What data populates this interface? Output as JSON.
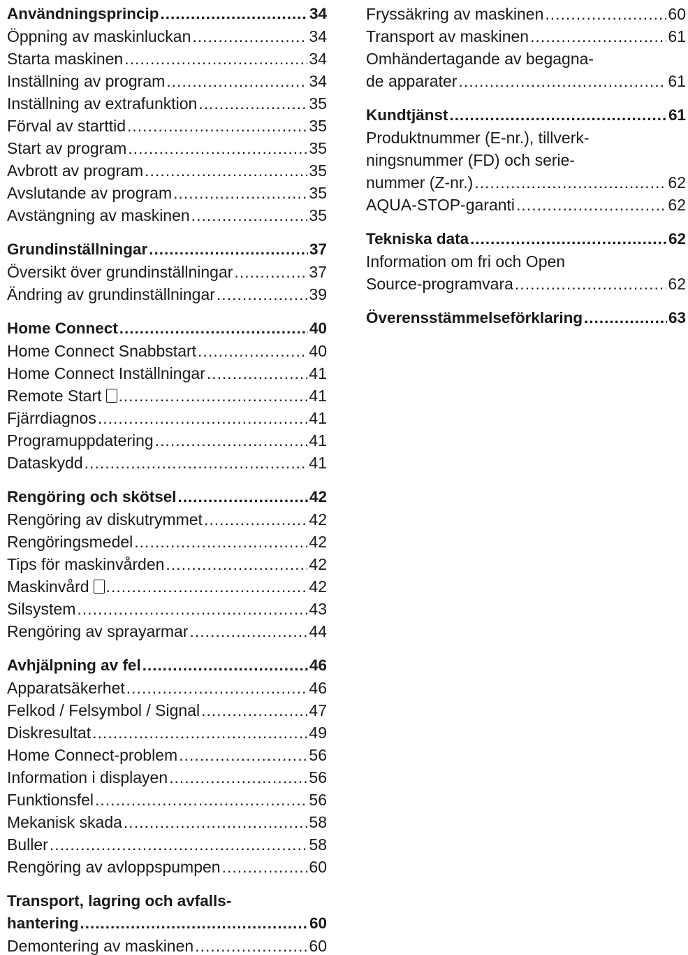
{
  "columns": [
    {
      "sections": [
        {
          "heading": {
            "lines": [
              "Användningsprincip"
            ],
            "page": "34"
          },
          "entries": [
            {
              "lines": [
                "Öppning av maskinluckan"
              ],
              "page": "34"
            },
            {
              "lines": [
                "Starta maskinen"
              ],
              "page": "34"
            },
            {
              "lines": [
                "Inställning av program"
              ],
              "page": "34"
            },
            {
              "lines": [
                "Inställning av extrafunktion"
              ],
              "page": "35"
            },
            {
              "lines": [
                "Förval av starttid"
              ],
              "page": "35"
            },
            {
              "lines": [
                "Start av program"
              ],
              "page": "35"
            },
            {
              "lines": [
                "Avbrott av program"
              ],
              "page": "35"
            },
            {
              "lines": [
                "Avslutande av program"
              ],
              "page": "35"
            },
            {
              "lines": [
                "Avstängning av maskinen"
              ],
              "page": "35"
            }
          ]
        },
        {
          "heading": {
            "lines": [
              "Grundinställningar"
            ],
            "page": "37"
          },
          "entries": [
            {
              "lines": [
                "Översikt över grundinställningar"
              ],
              "page": "37"
            },
            {
              "lines": [
                "Ändring av grundinställningar"
              ],
              "page": "39"
            }
          ]
        },
        {
          "heading": {
            "lines": [
              "Home Connect"
            ],
            "page": "40"
          },
          "entries": [
            {
              "lines": [
                "Home Connect Snabbstart"
              ],
              "page": "40"
            },
            {
              "lines": [
                "Home Connect Inställningar"
              ],
              "page": "41"
            },
            {
              "lines": [
                "Remote Start"
              ],
              "page": "41",
              "icon": true
            },
            {
              "lines": [
                "Fjärrdiagnos"
              ],
              "page": "41"
            },
            {
              "lines": [
                "Programuppdatering"
              ],
              "page": "41"
            },
            {
              "lines": [
                "Dataskydd"
              ],
              "page": "41"
            }
          ]
        },
        {
          "heading": {
            "lines": [
              "Rengöring och skötsel"
            ],
            "page": "42"
          },
          "entries": [
            {
              "lines": [
                "Rengöring av diskutrymmet"
              ],
              "page": "42"
            },
            {
              "lines": [
                "Rengöringsmedel"
              ],
              "page": "42"
            },
            {
              "lines": [
                "Tips för maskinvården"
              ],
              "page": "42"
            },
            {
              "lines": [
                "Maskinvård"
              ],
              "page": "42",
              "icon": true
            },
            {
              "lines": [
                "Silsystem"
              ],
              "page": "43"
            },
            {
              "lines": [
                "Rengöring av sprayarmar"
              ],
              "page": "44"
            }
          ]
        },
        {
          "heading": {
            "lines": [
              "Avhjälpning av fel"
            ],
            "page": "46"
          },
          "entries": [
            {
              "lines": [
                "Apparatsäkerhet"
              ],
              "page": "46"
            },
            {
              "lines": [
                "Felkod / Felsymbol / Signal"
              ],
              "page": "47"
            },
            {
              "lines": [
                "Diskresultat"
              ],
              "page": "49"
            },
            {
              "lines": [
                "Home Connect-problem"
              ],
              "page": "56"
            },
            {
              "lines": [
                "Information i displayen"
              ],
              "page": "56"
            },
            {
              "lines": [
                "Funktionsfel"
              ],
              "page": "56"
            },
            {
              "lines": [
                "Mekanisk skada"
              ],
              "page": "58"
            },
            {
              "lines": [
                "Buller"
              ],
              "page": "58"
            },
            {
              "lines": [
                "Rengöring av avloppspumpen"
              ],
              "page": "60"
            }
          ]
        },
        {
          "heading": {
            "lines": [
              "Transport, lagring och avfalls-",
              "hantering"
            ],
            "page": "60"
          },
          "entries": [
            {
              "lines": [
                "Demontering av maskinen"
              ],
              "page": "60"
            }
          ]
        }
      ]
    },
    {
      "sections": [
        {
          "entries": [
            {
              "lines": [
                "Fryssäkring av maskinen"
              ],
              "page": "60"
            },
            {
              "lines": [
                "Transport av maskinen"
              ],
              "page": "61"
            },
            {
              "lines": [
                "Omhändertagande av begagna-",
                "de apparater"
              ],
              "page": "61"
            }
          ]
        },
        {
          "heading": {
            "lines": [
              "Kundtjänst"
            ],
            "page": "61"
          },
          "entries": [
            {
              "lines": [
                "Produktnummer (E-nr.), tillverk-",
                "ningsnummer (FD) och serie-",
                "nummer (Z-nr.)"
              ],
              "page": "62"
            },
            {
              "lines": [
                "AQUA-STOP-garanti"
              ],
              "page": "62"
            }
          ]
        },
        {
          "heading": {
            "lines": [
              "Tekniska data"
            ],
            "page": "62"
          },
          "entries": [
            {
              "lines": [
                "Information om fri och Open",
                "Source-programvara"
              ],
              "page": "62"
            }
          ]
        },
        {
          "heading": {
            "lines": [
              "Överensstämmelseförklaring"
            ],
            "page": "63"
          },
          "entries": []
        }
      ]
    }
  ]
}
